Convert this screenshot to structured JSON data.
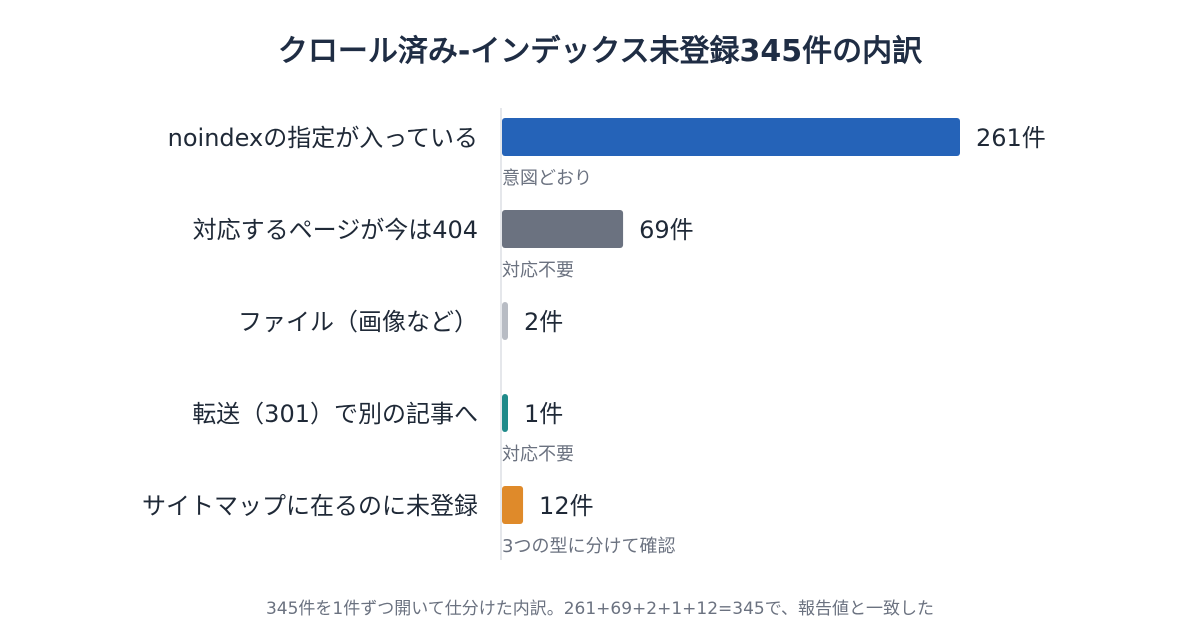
{
  "chart_data": {
    "type": "bar",
    "orientation": "horizontal",
    "title": "クロール済み-インデックス未登録345件の内訳",
    "categories": [
      "noindexの指定が入っている",
      "対応するページが今は404",
      "ファイル（画像など）",
      "転送（301）で別の記事へ",
      "サイトマップに在るのに未登録"
    ],
    "values": [
      261,
      69,
      2,
      1,
      12
    ],
    "value_labels": [
      "261件",
      "69件",
      "2件",
      "1件",
      "12件"
    ],
    "notes": [
      "意図どおり",
      "対応不要",
      "",
      "対応不要",
      "3つの型に分けて確認"
    ],
    "colors": [
      "#2563b8",
      "#6b7280",
      "#b8bcc4",
      "#1f8a8a",
      "#df8a2a"
    ],
    "xlim": [
      0,
      261
    ],
    "grid": false,
    "legend": "none"
  },
  "footer": "345件を1件ずつ開いて仕分けた内訳。261+69+2+1+12=345で、報告値と一致した"
}
